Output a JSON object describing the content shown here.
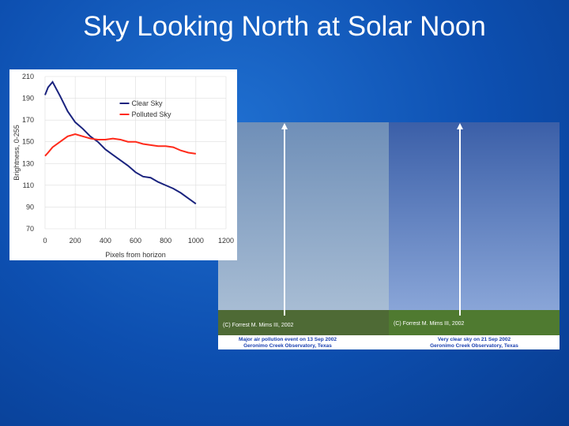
{
  "title": "Sky Looking North at Solar Noon",
  "chart_data": {
    "type": "line",
    "x": [
      0,
      20,
      50,
      100,
      150,
      200,
      250,
      300,
      350,
      400,
      450,
      500,
      550,
      600,
      650,
      700,
      750,
      800,
      850,
      900,
      950,
      1000
    ],
    "series": [
      {
        "name": "Clear Sky",
        "color": "#1a237e",
        "values": [
          193,
          200,
          205,
          192,
          178,
          168,
          162,
          155,
          150,
          143,
          138,
          133,
          128,
          122,
          118,
          117,
          113,
          110,
          107,
          103,
          98,
          93
        ]
      },
      {
        "name": "Polluted Sky",
        "color": "#ff2a1a",
        "values": [
          137,
          140,
          145,
          150,
          155,
          157,
          155,
          153,
          152,
          152,
          153,
          152,
          150,
          150,
          148,
          147,
          146,
          146,
          145,
          142,
          140,
          139
        ]
      }
    ],
    "xlim": [
      0,
      1200
    ],
    "xticks": [
      0,
      200,
      400,
      600,
      800,
      1000,
      1200
    ],
    "ylim": [
      70,
      210
    ],
    "yticks": [
      70,
      90,
      110,
      130,
      150,
      170,
      190,
      210
    ],
    "xlabel": "Pixels from horizon",
    "ylabel": "Brightness, 0-255",
    "grid": true,
    "legend": "upper center"
  },
  "photos": [
    {
      "credit": "(C) Forrest M. Mims III, 2002",
      "caption": [
        "Major air pollution event on 13 Sep 2002",
        "Geronimo Creek Observatory, Texas"
      ]
    },
    {
      "credit": "(C) Forrest M. Mims III, 2002",
      "caption": [
        "Very clear sky on 21 Sep 2002",
        "Geronimo Creek Observatory, Texas"
      ]
    }
  ]
}
